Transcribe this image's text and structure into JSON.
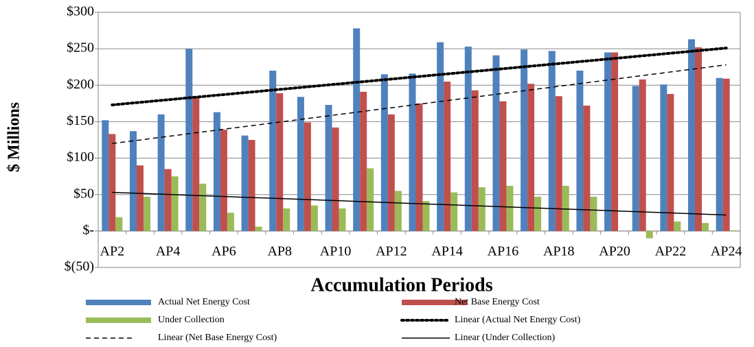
{
  "chart_data": {
    "type": "bar",
    "x_label": "Accumulation Periods",
    "y_label": "$ Millions",
    "categories": [
      "AP2",
      null,
      "AP4",
      null,
      "AP6",
      null,
      "AP8",
      null,
      "AP10",
      null,
      "AP12",
      null,
      "AP14",
      null,
      "AP16",
      null,
      "AP18",
      null,
      "AP20",
      null,
      "AP22",
      null,
      "AP24"
    ],
    "series": [
      {
        "name": "Actual Net Energy Cost",
        "color": "#4f81bd",
        "values": [
          152,
          137,
          160,
          250,
          163,
          131,
          220,
          184,
          173,
          278,
          215,
          216,
          259,
          253,
          241,
          249,
          247,
          220,
          245,
          199,
          201,
          263,
          210
        ]
      },
      {
        "name": "Net Base Energy Cost",
        "color": "#c0504d",
        "values": [
          133,
          90,
          85,
          184,
          139,
          125,
          189,
          149,
          142,
          191,
          160,
          175,
          205,
          193,
          178,
          202,
          185,
          172,
          245,
          208,
          188,
          252,
          209
        ]
      },
      {
        "name": "Under Collection",
        "color": "#9bbb59",
        "values": [
          19,
          47,
          75,
          65,
          25,
          6,
          31,
          35,
          31,
          86,
          55,
          41,
          53,
          60,
          62,
          47,
          62,
          47,
          0,
          -10,
          13,
          11,
          1
        ]
      }
    ],
    "trendlines": [
      {
        "name": "Linear (Actual Net Energy Cost)",
        "color": "#000000",
        "style": "dotted",
        "values": [
          173,
          251
        ]
      },
      {
        "name": "Linear (Net Base Energy Cost)",
        "color": "#000000",
        "style": "dashed",
        "values": [
          120,
          228
        ]
      },
      {
        "name": "Linear (Under Collection)",
        "color": "#000000",
        "style": "solid",
        "values": [
          53,
          22
        ]
      }
    ],
    "ylim": [
      -50,
      300
    ],
    "yticks": [
      {
        "value": -50,
        "label": "$(50)"
      },
      {
        "value": 0,
        "label": "$-"
      },
      {
        "value": 50,
        "label": "$50"
      },
      {
        "value": 100,
        "label": "$100"
      },
      {
        "value": 150,
        "label": "$150"
      },
      {
        "value": 200,
        "label": "$200"
      },
      {
        "value": 250,
        "label": "$250"
      },
      {
        "value": 300,
        "label": "$300"
      }
    ],
    "grid": true
  }
}
